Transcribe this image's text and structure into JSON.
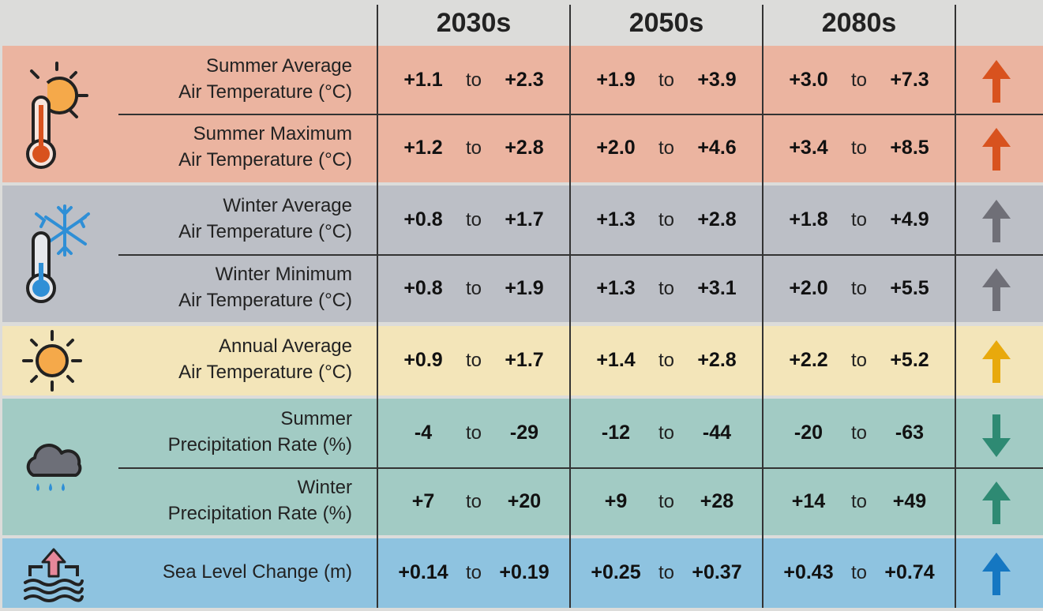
{
  "headers": [
    "2030s",
    "2050s",
    "2080s"
  ],
  "connector": "to",
  "rows": [
    {
      "label": [
        "Summer Average",
        "Air Temperature (°C)"
      ],
      "ranges": [
        [
          "+1.1",
          "+2.3"
        ],
        [
          "+1.9",
          "+3.9"
        ],
        [
          "+3.0",
          "+7.3"
        ]
      ],
      "trend": "up"
    },
    {
      "label": [
        "Summer Maximum",
        "Air Temperature (°C)"
      ],
      "ranges": [
        [
          "+1.2",
          "+2.8"
        ],
        [
          "+2.0",
          "+4.6"
        ],
        [
          "+3.4",
          "+8.5"
        ]
      ],
      "trend": "up"
    },
    {
      "label": [
        "Winter Average",
        "Air Temperature (°C)"
      ],
      "ranges": [
        [
          "+0.8",
          "+1.7"
        ],
        [
          "+1.3",
          "+2.8"
        ],
        [
          "+1.8",
          "+4.9"
        ]
      ],
      "trend": "up"
    },
    {
      "label": [
        "Winter Minimum",
        "Air Temperature (°C)"
      ],
      "ranges": [
        [
          "+0.8",
          "+1.9"
        ],
        [
          "+1.3",
          "+3.1"
        ],
        [
          "+2.0",
          "+5.5"
        ]
      ],
      "trend": "up"
    },
    {
      "label": [
        "Annual Average",
        "Air Temperature (°C)"
      ],
      "ranges": [
        [
          "+0.9",
          "+1.7"
        ],
        [
          "+1.4",
          "+2.8"
        ],
        [
          "+2.2",
          "+5.2"
        ]
      ],
      "trend": "up"
    },
    {
      "label": [
        "Summer",
        "Precipitation Rate (%)"
      ],
      "ranges": [
        [
          "-4",
          "-29"
        ],
        [
          "-12",
          "-44"
        ],
        [
          "-20",
          "-63"
        ]
      ],
      "trend": "down"
    },
    {
      "label": [
        "Winter",
        "Precipitation Rate (%)"
      ],
      "ranges": [
        [
          "+7",
          "+20"
        ],
        [
          "+9",
          "+28"
        ],
        [
          "+14",
          "+49"
        ]
      ],
      "trend": "up"
    },
    {
      "label": [
        "Sea Level Change (m)"
      ],
      "ranges": [
        [
          "+0.14",
          "+0.19"
        ],
        [
          "+0.25",
          "+0.37"
        ],
        [
          "+0.43",
          "+0.74"
        ]
      ],
      "trend": "up"
    }
  ],
  "groups": [
    {
      "icon": "thermometer-sun-icon",
      "color": "#ebb4a0",
      "arrow_color": "#d8521e"
    },
    {
      "icon": "thermometer-snowflake-icon",
      "color": "#bcbfc6",
      "arrow_color": "#6f6f77"
    },
    {
      "icon": "sun-icon",
      "color": "#f3e5b9",
      "arrow_color": "#e8a90c"
    },
    {
      "icon": "rain-cloud-icon",
      "color": "#a2cbc4",
      "arrow_color": "#2e8a73"
    },
    {
      "icon": "sea-level-rise-icon",
      "color": "#8ec3e0",
      "arrow_color": "#1577c2"
    }
  ]
}
